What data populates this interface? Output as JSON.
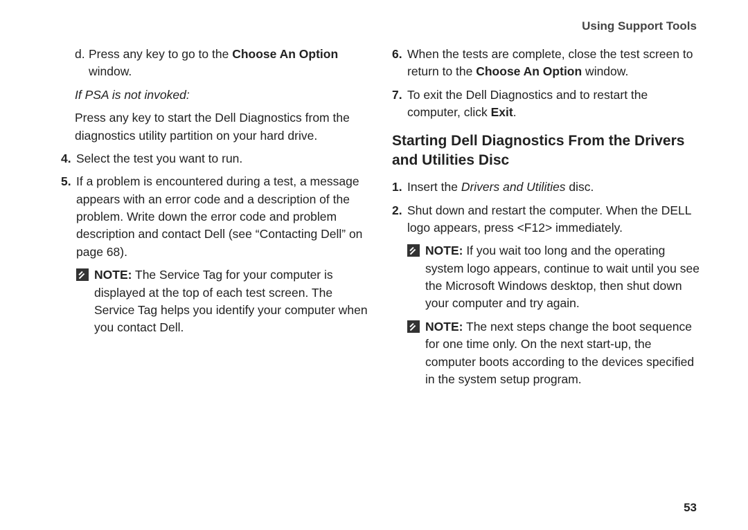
{
  "header": "Using Support Tools",
  "pageNumber": "53",
  "left": {
    "d_prefix": "d.",
    "d_before": "Press any key to go to the ",
    "d_bold": "Choose An Option",
    "d_after": " window.",
    "psa": "If PSA is not invoked:",
    "psa_body": "Press any key to start the Dell Diagnostics from the diagnostics utility partition on your hard drive.",
    "s4_num": "4.",
    "s4_txt": "Select the test you want to run.",
    "s5_num": "5.",
    "s5_txt": "If a problem is encountered during a test, a message appears with an error code and a description of the problem. Write down the error code and problem description and contact Dell (see “Contacting Dell” on page 68).",
    "note1_label": "NOTE:",
    "note1_txt": " The Service Tag for your computer is displayed at the top of each test screen. The Service Tag helps you identify your computer when you contact Dell."
  },
  "right": {
    "s6_num": "6.",
    "s6_before": "When the tests are complete, close the test screen to return to the ",
    "s6_bold": "Choose An Option",
    "s6_after": " window.",
    "s7_num": "7.",
    "s7_before": "To exit the Dell Diagnostics and to restart the computer, click ",
    "s7_bold": "Exit",
    "s7_after": ".",
    "heading": "Starting Dell Diagnostics From the Drivers and Utilities Disc",
    "r1_num": "1.",
    "r1_before": "Insert the ",
    "r1_italic": "Drivers and Utilities",
    "r1_after": " disc.",
    "r2_num": "2.",
    "r2_txt": "Shut down and restart the computer. When the DELL logo appears, press <F12> immediately.",
    "note2_label": "NOTE:",
    "note2_txt": " If you wait too long and the operating system logo appears, continue to wait until you see the Microsoft Windows desktop, then shut down your computer and try again.",
    "note3_label": "NOTE:",
    "note3_txt": " The next steps change the boot sequence for one time only. On the next start-up, the computer boots according to the devices specified in the system setup program."
  }
}
